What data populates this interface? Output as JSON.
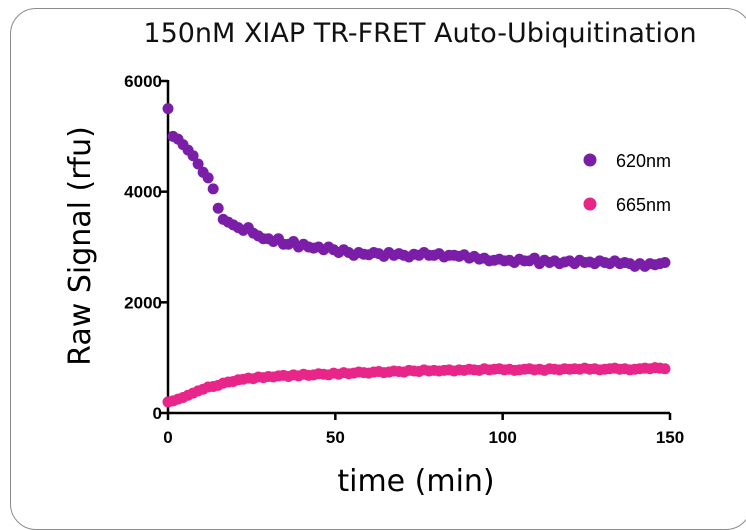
{
  "chart_data": {
    "type": "scatter",
    "title": "150nM XIAP TR-FRET Auto-Ubiquitination",
    "xlabel": "time (min)",
    "ylabel": "Raw Signal (rfu)",
    "xlim": [
      0,
      150
    ],
    "ylim": [
      0,
      6000
    ],
    "x_ticks": [
      0,
      50,
      100,
      150
    ],
    "y_ticks": [
      0,
      2000,
      4000,
      6000
    ],
    "grid": false,
    "legend_position": "right",
    "series": [
      {
        "name": "620nm",
        "color": "#7a1ea8",
        "x": [
          0,
          1.5,
          3,
          4.5,
          6,
          7.5,
          9,
          10.5,
          12,
          13.5,
          15,
          16.5,
          18,
          19.5,
          21,
          22.5,
          24,
          25.5,
          27,
          28.5,
          30,
          31.5,
          33,
          34.5,
          36,
          37.5,
          39,
          40.5,
          42,
          43.5,
          45,
          46.5,
          48,
          49.5,
          51,
          52.5,
          54,
          55.5,
          57,
          58.5,
          60,
          61.5,
          63,
          64.5,
          66,
          67.5,
          69,
          70.5,
          72,
          73.5,
          75,
          76.5,
          78,
          79.5,
          81,
          82.5,
          84,
          85.5,
          87,
          88.5,
          90,
          91.5,
          93,
          94.5,
          96,
          97.5,
          99,
          100.5,
          102,
          103.5,
          105,
          106.5,
          108,
          109.5,
          111,
          112.5,
          114,
          115.5,
          117,
          118.5,
          120,
          121.5,
          123,
          124.5,
          126,
          127.5,
          129,
          130.5,
          132,
          133.5,
          135,
          136.5,
          138,
          139.5,
          141,
          142.5,
          144,
          145.5,
          147,
          148.5
        ],
        "y": [
          5500,
          5000,
          4950,
          4850,
          4750,
          4650,
          4500,
          4350,
          4250,
          4050,
          3700,
          3500,
          3450,
          3400,
          3350,
          3300,
          3350,
          3250,
          3200,
          3150,
          3150,
          3100,
          3150,
          3050,
          3050,
          3100,
          3000,
          3050,
          3000,
          2980,
          3000,
          2950,
          3000,
          2950,
          2900,
          2950,
          2900,
          2850,
          2900,
          2870,
          2860,
          2900,
          2880,
          2830,
          2900,
          2850,
          2880,
          2850,
          2820,
          2870,
          2850,
          2900,
          2850,
          2850,
          2880,
          2820,
          2850,
          2850,
          2830,
          2860,
          2800,
          2830,
          2780,
          2800,
          2750,
          2760,
          2780,
          2750,
          2760,
          2720,
          2780,
          2750,
          2750,
          2800,
          2700,
          2760,
          2720,
          2750,
          2700,
          2730,
          2750,
          2700,
          2760,
          2720,
          2730,
          2700,
          2750,
          2720,
          2700,
          2750,
          2700,
          2720,
          2700,
          2650,
          2700,
          2650,
          2700,
          2680,
          2700,
          2720
        ]
      },
      {
        "name": "665nm",
        "color": "#e8268a",
        "x": [
          0,
          1.5,
          3,
          4.5,
          6,
          7.5,
          9,
          10.5,
          12,
          13.5,
          15,
          16.5,
          18,
          19.5,
          21,
          22.5,
          24,
          25.5,
          27,
          28.5,
          30,
          31.5,
          33,
          34.5,
          36,
          37.5,
          39,
          40.5,
          42,
          43.5,
          45,
          46.5,
          48,
          49.5,
          51,
          52.5,
          54,
          55.5,
          57,
          58.5,
          60,
          61.5,
          63,
          64.5,
          66,
          67.5,
          69,
          70.5,
          72,
          73.5,
          75,
          76.5,
          78,
          79.5,
          81,
          82.5,
          84,
          85.5,
          87,
          88.5,
          90,
          91.5,
          93,
          94.5,
          96,
          97.5,
          99,
          100.5,
          102,
          103.5,
          105,
          106.5,
          108,
          109.5,
          111,
          112.5,
          114,
          115.5,
          117,
          118.5,
          120,
          121.5,
          123,
          124.5,
          126,
          127.5,
          129,
          130.5,
          132,
          133.5,
          135,
          136.5,
          138,
          139.5,
          141,
          142.5,
          144,
          145.5,
          147,
          148.5
        ],
        "y": [
          200,
          220,
          250,
          280,
          320,
          360,
          400,
          430,
          470,
          480,
          500,
          540,
          560,
          570,
          600,
          610,
          630,
          620,
          650,
          640,
          660,
          650,
          670,
          680,
          660,
          690,
          670,
          700,
          680,
          690,
          710,
          700,
          690,
          720,
          700,
          730,
          710,
          720,
          740,
          730,
          720,
          740,
          750,
          730,
          740,
          760,
          750,
          740,
          770,
          760,
          750,
          780,
          760,
          770,
          760,
          770,
          780,
          760,
          780,
          770,
          790,
          780,
          770,
          800,
          780,
          790,
          800,
          780,
          790,
          770,
          780,
          790,
          800,
          780,
          790,
          770,
          800,
          790,
          780,
          800,
          790,
          800,
          790,
          810,
          790,
          800,
          780,
          790,
          800,
          810,
          790,
          800,
          780,
          790,
          800,
          810,
          800,
          820,
          810,
          800
        ]
      }
    ]
  }
}
